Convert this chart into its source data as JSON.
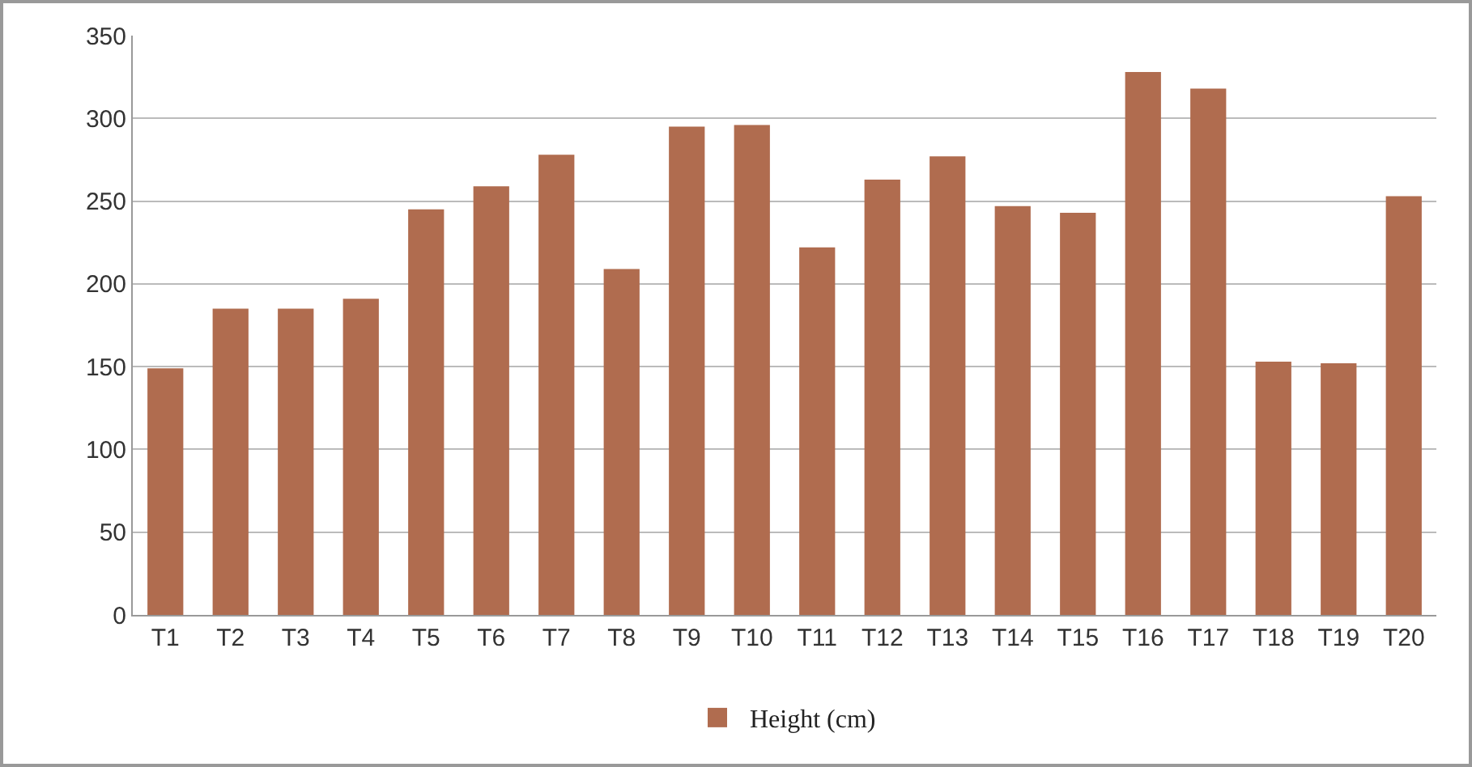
{
  "chart_data": {
    "type": "bar",
    "categories": [
      "T1",
      "T2",
      "T3",
      "T4",
      "T5",
      "T6",
      "T7",
      "T8",
      "T9",
      "T10",
      "T11",
      "T12",
      "T13",
      "T14",
      "T15",
      "T16",
      "T17",
      "T18",
      "T19",
      "T20"
    ],
    "series": [
      {
        "name": "Height (cm)",
        "color": "#b06c4f",
        "values": [
          149,
          185,
          185,
          191,
          245,
          259,
          278,
          209,
          295,
          296,
          222,
          263,
          277,
          247,
          243,
          328,
          318,
          153,
          152,
          253
        ]
      }
    ],
    "ylim": [
      0,
      350
    ],
    "yticks": [
      0,
      50,
      100,
      150,
      200,
      250,
      300,
      350
    ],
    "grid": "y",
    "legend": "bottom"
  }
}
